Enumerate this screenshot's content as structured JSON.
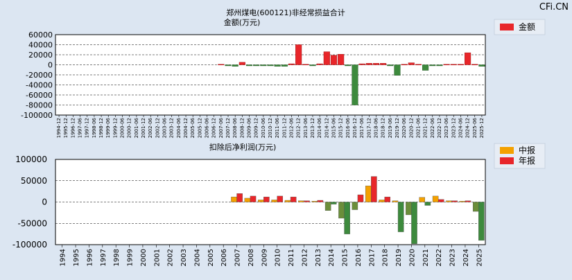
{
  "watermark": "CFi.CN",
  "chart_data": [
    {
      "type": "bar",
      "title": "郑州煤电(600121)非经常损益合计",
      "subtitle": "金额(万元)",
      "ylim": [
        -100000,
        60000
      ],
      "yticks": [
        60000,
        40000,
        20000,
        0,
        -20000,
        -40000,
        -60000,
        -80000,
        -100000
      ],
      "grid": true,
      "legend_position": "top-right",
      "positive_color": "#e8262a",
      "negative_color": "#3d8a3d",
      "series": [
        {
          "name": "金额",
          "color": "#e8262a",
          "points": [
            {
              "x": "2007-06",
              "y": 1000
            },
            {
              "x": "2007-12",
              "y": -2000
            },
            {
              "x": "2008-06",
              "y": -3000
            },
            {
              "x": "2008-12",
              "y": 5000
            },
            {
              "x": "2009-06",
              "y": -2000
            },
            {
              "x": "2009-12",
              "y": -2000
            },
            {
              "x": "2010-06",
              "y": -2000
            },
            {
              "x": "2010-12",
              "y": -2000
            },
            {
              "x": "2011-06",
              "y": -3000
            },
            {
              "x": "2011-12",
              "y": -3000
            },
            {
              "x": "2012-06",
              "y": 2000
            },
            {
              "x": "2012-12",
              "y": 40000
            },
            {
              "x": "2013-06",
              "y": 1000
            },
            {
              "x": "2013-12",
              "y": -2000
            },
            {
              "x": "2014-06",
              "y": 2000
            },
            {
              "x": "2014-12",
              "y": 26000
            },
            {
              "x": "2015-06",
              "y": 19000
            },
            {
              "x": "2015-12",
              "y": 21000
            },
            {
              "x": "2016-06",
              "y": -2000
            },
            {
              "x": "2016-12",
              "y": -80000
            },
            {
              "x": "2017-06",
              "y": 2000
            },
            {
              "x": "2017-12",
              "y": 3000
            },
            {
              "x": "2018-06",
              "y": 3000
            },
            {
              "x": "2018-12",
              "y": 3000
            },
            {
              "x": "2019-06",
              "y": -2000
            },
            {
              "x": "2019-12",
              "y": -21000
            },
            {
              "x": "2020-06",
              "y": 1000
            },
            {
              "x": "2020-12",
              "y": 4000
            },
            {
              "x": "2021-06",
              "y": 1000
            },
            {
              "x": "2021-12",
              "y": -11000
            },
            {
              "x": "2022-06",
              "y": -2000
            },
            {
              "x": "2022-12",
              "y": -2000
            },
            {
              "x": "2023-06",
              "y": 1000
            },
            {
              "x": "2023-12",
              "y": 1000
            },
            {
              "x": "2024-06",
              "y": 1000
            },
            {
              "x": "2024-12",
              "y": 24000
            },
            {
              "x": "2025-06",
              "y": 1000
            },
            {
              "x": "2025-12",
              "y": -3000
            }
          ]
        }
      ],
      "x_tick_labels": [
        "1994-12",
        "1995-12",
        "1996-12",
        "1997-06",
        "1997-12",
        "1998-06",
        "1998-12",
        "1999-06",
        "1999-12",
        "2000-06",
        "2000-12",
        "2001-06",
        "2001-12",
        "2002-06",
        "2002-12",
        "2003-06",
        "2003-12",
        "2004-06",
        "2004-12",
        "2005-06",
        "2005-12",
        "2006-06",
        "2006-12",
        "2007-06",
        "2007-12",
        "2008-06",
        "2008-12",
        "2009-06",
        "2009-12",
        "2010-06",
        "2010-12",
        "2011-06",
        "2011-12",
        "2012-06",
        "2012-12",
        "2013-06",
        "2013-12",
        "2014-06",
        "2014-12",
        "2015-06",
        "2015-12",
        "2016-06",
        "2016-12",
        "2017-06",
        "2017-12",
        "2018-06",
        "2018-12",
        "2019-06",
        "2019-12",
        "2020-06",
        "2020-12",
        "2021-06",
        "2021-12",
        "2022-06",
        "2022-12",
        "2023-06",
        "2023-12",
        "2024-06",
        "2024-12",
        "2025-06",
        "2025-12"
      ]
    },
    {
      "type": "bar",
      "title": "扣除后净利润(万元)",
      "ylim": [
        -100000,
        100000
      ],
      "yticks": [
        100000,
        50000,
        0,
        -50000,
        -100000
      ],
      "grid": true,
      "legend_position": "top-right",
      "categories": [
        "1994",
        "1995",
        "1996",
        "1997",
        "1998",
        "1999",
        "2000",
        "2001",
        "2002",
        "2003",
        "2004",
        "2005",
        "2006",
        "2007",
        "2008",
        "2009",
        "2010",
        "2011",
        "2012",
        "2013",
        "2014",
        "2015",
        "2016",
        "2017",
        "2018",
        "2019",
        "2020",
        "2021",
        "2022",
        "2023",
        "2024",
        "2025"
      ],
      "series": [
        {
          "name": "中报",
          "color": "#f4a100",
          "negative_color": "#6b8e3a",
          "values": [
            null,
            null,
            null,
            null,
            null,
            null,
            null,
            null,
            null,
            null,
            null,
            null,
            null,
            12000,
            9000,
            5000,
            5000,
            4000,
            3000,
            2000,
            -20000,
            -38000,
            -18000,
            38000,
            5000,
            3000,
            -30000,
            11000,
            14000,
            3000,
            2000,
            -22000
          ]
        },
        {
          "name": "年报",
          "color": "#e8262a",
          "negative_color": "#3d8a3d",
          "values": [
            null,
            null,
            null,
            null,
            null,
            null,
            null,
            null,
            null,
            null,
            null,
            null,
            null,
            20000,
            14000,
            12000,
            14000,
            12000,
            3000,
            4000,
            -5000,
            -75000,
            17000,
            60000,
            12000,
            -70000,
            -98000,
            -8000,
            6000,
            3000,
            3000,
            -90000
          ]
        }
      ]
    }
  ]
}
